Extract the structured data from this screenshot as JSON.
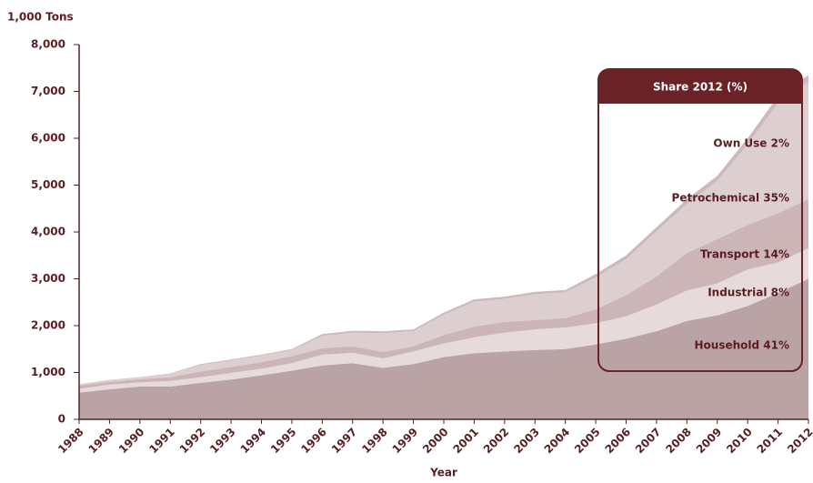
{
  "chart_data": {
    "type": "stacked_area",
    "y_axis_label": "1,000 Tons",
    "x_axis_label": "Year",
    "legend_title": "Share 2012 (%)",
    "categories": [
      "1988",
      "1989",
      "1990",
      "1991",
      "1992",
      "1993",
      "1994",
      "1995",
      "1996",
      "1997",
      "1998",
      "1999",
      "2000",
      "2001",
      "2002",
      "2003",
      "2004",
      "2005",
      "2006",
      "2007",
      "2008",
      "2009",
      "2010",
      "2011",
      "2012"
    ],
    "series": [
      {
        "name": "Household 41%",
        "color": "#b9a3a4",
        "values": [
          570,
          640,
          700,
          700,
          780,
          850,
          940,
          1040,
          1150,
          1200,
          1100,
          1180,
          1330,
          1410,
          1450,
          1480,
          1500,
          1600,
          1720,
          1880,
          2100,
          2220,
          2420,
          2700,
          3000
        ]
      },
      {
        "name": "Industrial 8%",
        "color": "#e6dadb",
        "values": [
          80,
          100,
          90,
          120,
          120,
          140,
          140,
          160,
          230,
          220,
          200,
          270,
          290,
          340,
          400,
          440,
          460,
          450,
          480,
          570,
          650,
          680,
          780,
          650,
          650
        ]
      },
      {
        "name": "Transport 14%",
        "color": "#cbb5b6",
        "values": [
          70,
          60,
          70,
          80,
          120,
          130,
          140,
          150,
          140,
          140,
          140,
          110,
          180,
          230,
          230,
          200,
          200,
          300,
          450,
          600,
          800,
          950,
          950,
          1050,
          1050
        ]
      },
      {
        "name": "Petrochemical 35%",
        "color": "#ddcfd0",
        "values": [
          20,
          30,
          30,
          70,
          140,
          140,
          140,
          130,
          260,
          290,
          400,
          320,
          430,
          530,
          490,
          550,
          550,
          680,
          770,
          960,
          1050,
          1240,
          1720,
          2350,
          2500
        ]
      },
      {
        "name": "Own Use 2%",
        "color": "#cbbabb",
        "values": [
          10,
          10,
          10,
          10,
          20,
          20,
          20,
          20,
          40,
          40,
          40,
          40,
          50,
          50,
          50,
          50,
          50,
          70,
          80,
          90,
          100,
          110,
          130,
          150,
          150
        ]
      }
    ],
    "ylim": [
      0,
      8000
    ],
    "yticks": [
      0,
      {
        "value": 1000,
        "label": "1,000"
      },
      {
        "value": 2000,
        "label": "2,000"
      },
      {
        "value": 3000,
        "label": "3,000"
      },
      {
        "value": 4000,
        "label": "4,000"
      },
      {
        "value": 5000,
        "label": "5,000"
      },
      {
        "value": 6000,
        "label": "6,000"
      },
      {
        "value": 7000,
        "label": "7,000"
      },
      {
        "value": 8000,
        "label": "8,000"
      }
    ],
    "grid": false,
    "legend_position": "upper right"
  }
}
